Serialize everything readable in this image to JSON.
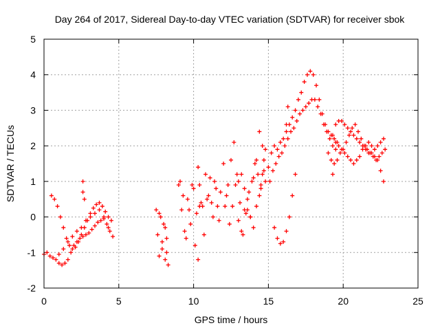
{
  "chart_data": {
    "type": "scatter",
    "title": "Day 264 of 2017, Sidereal Day-to-day VTEC variation (SDTVAR) for receiver sbok",
    "xlabel": "GPS time / hours",
    "ylabel": "SDTVAR / TECUs",
    "xlim": [
      0,
      25
    ],
    "ylim": [
      -2,
      5
    ],
    "x_ticks": [
      "0",
      "5",
      "10",
      "15",
      "20",
      "25"
    ],
    "y_ticks": [
      "-2",
      "-1",
      "0",
      "1",
      "2",
      "3",
      "4",
      "5"
    ],
    "grid": true,
    "marker": "+",
    "color": "#ff0000",
    "series": [
      {
        "name": "sbok",
        "x": [
          0.0,
          0.2,
          0.4,
          0.6,
          0.8,
          1.0,
          1.2,
          1.4,
          1.6,
          1.8,
          2.0,
          2.2,
          2.4,
          2.6,
          2.8,
          3.0,
          3.2,
          3.4,
          3.6,
          3.8,
          4.0,
          4.2,
          4.4,
          4.6,
          0.5,
          0.7,
          0.9,
          1.1,
          1.3,
          1.5,
          1.7,
          1.9,
          2.1,
          2.3,
          2.5,
          2.7,
          2.9,
          3.1,
          3.3,
          3.5,
          3.7,
          3.9,
          4.1,
          4.3,
          4.5,
          1.0,
          1.3,
          1.6,
          1.9,
          2.2,
          2.5,
          2.8,
          3.1,
          3.4,
          3.7,
          4.0,
          4.3,
          2.6,
          2.6,
          2.7,
          7.5,
          7.6,
          7.7,
          7.8,
          7.9,
          8.0,
          8.1,
          8.2,
          8.3,
          7.7,
          7.9,
          8.1,
          8.2,
          9.0,
          9.2,
          9.4,
          9.6,
          9.8,
          10.0,
          10.2,
          10.4,
          10.6,
          10.8,
          11.0,
          11.2,
          11.4,
          11.6,
          11.8,
          9.1,
          9.3,
          9.5,
          9.7,
          9.9,
          10.1,
          10.3,
          10.5,
          10.7,
          10.9,
          11.1,
          11.3,
          11.5,
          11.7,
          10.3,
          10.4,
          12.0,
          12.2,
          12.4,
          12.6,
          12.8,
          13.0,
          13.2,
          13.4,
          13.6,
          13.8,
          14.0,
          14.2,
          14.4,
          14.6,
          14.8,
          12.1,
          12.3,
          12.5,
          12.7,
          12.9,
          13.1,
          13.3,
          13.5,
          13.7,
          13.9,
          14.1,
          14.3,
          14.5,
          14.7,
          13.0,
          13.2,
          13.4,
          13.6,
          13.8,
          14.0,
          14.2,
          14.4,
          14.5,
          14.6,
          14.7,
          14.8,
          15.0,
          15.2,
          15.4,
          15.6,
          15.8,
          16.0,
          16.2,
          16.4,
          16.6,
          16.8,
          17.0,
          17.2,
          17.4,
          17.6,
          17.8,
          18.0,
          18.2,
          18.4,
          18.6,
          18.8,
          19.0,
          19.2,
          19.4,
          19.6,
          15.1,
          15.3,
          15.5,
          15.7,
          15.9,
          16.1,
          16.3,
          16.5,
          16.7,
          16.9,
          17.1,
          17.3,
          17.5,
          17.7,
          17.9,
          18.1,
          18.3,
          18.5,
          18.7,
          18.9,
          19.1,
          19.3,
          19.5,
          15.4,
          15.6,
          15.8,
          16.0,
          16.2,
          16.4,
          16.6,
          16.8,
          16.2,
          16.3,
          19.0,
          19.2,
          19.4,
          19.6,
          19.8,
          20.0,
          20.2,
          20.4,
          20.6,
          20.8,
          21.0,
          21.2,
          21.4,
          21.6,
          21.8,
          22.0,
          22.2,
          22.4,
          22.6,
          22.8,
          19.5,
          19.7,
          19.9,
          20.1,
          20.3,
          20.5,
          20.7,
          20.9,
          21.1,
          21.3,
          21.5,
          21.7,
          21.9,
          22.1,
          22.3,
          22.5,
          22.7,
          19.3,
          19.5,
          19.7,
          19.9,
          20.1,
          20.3,
          20.5,
          20.7,
          20.9,
          21.1,
          21.3,
          21.5,
          21.7,
          21.9,
          22.1,
          22.3,
          22.5,
          22.7,
          19.3
        ],
        "y": [
          -1.05,
          -1.0,
          -1.1,
          -1.15,
          -1.2,
          -1.3,
          -1.35,
          -1.3,
          -1.2,
          -1.0,
          -0.8,
          -0.7,
          -0.6,
          -0.55,
          -0.5,
          -0.45,
          -0.35,
          -0.25,
          -0.15,
          -0.1,
          -0.05,
          -0.2,
          -0.4,
          -0.55,
          0.6,
          0.5,
          0.3,
          0.0,
          -0.3,
          -0.6,
          -0.8,
          -0.9,
          -0.85,
          -0.7,
          -0.5,
          -0.3,
          -0.1,
          0.1,
          0.25,
          0.35,
          0.4,
          0.3,
          0.15,
          0.0,
          -0.1,
          -1.05,
          -0.9,
          -0.7,
          -0.55,
          -0.4,
          -0.3,
          -0.1,
          0.0,
          0.1,
          0.2,
          0.0,
          -0.3,
          1.0,
          0.7,
          0.5,
          0.2,
          -0.5,
          -1.1,
          0.0,
          -0.9,
          -0.2,
          -1.2,
          -0.6,
          -1.35,
          0.1,
          -0.7,
          -0.3,
          -1.0,
          0.9,
          0.2,
          -0.4,
          0.5,
          -0.2,
          0.8,
          0.1,
          0.9,
          0.3,
          1.2,
          0.6,
          0.4,
          1.0,
          0.3,
          0.7,
          1.0,
          0.6,
          -0.6,
          0.2,
          0.9,
          -0.8,
          -1.2,
          0.4,
          -0.5,
          0.5,
          1.1,
          0.0,
          0.8,
          -0.1,
          1.4,
          0.3,
          1.5,
          0.6,
          -0.2,
          0.3,
          0.9,
          1.0,
          1.2,
          0.8,
          0.2,
          0.0,
          1.1,
          1.6,
          2.4,
          2.0,
          1.0,
          0.3,
          0.9,
          1.6,
          2.1,
          1.2,
          0.4,
          -0.5,
          0.1,
          0.7,
          1.0,
          1.5,
          1.2,
          0.8,
          1.3,
          -0.1,
          -0.4,
          0.2,
          0.5,
          0.0,
          -0.3,
          0.3,
          0.6,
          0.9,
          1.2,
          1.6,
          1.9,
          1.4,
          1.8,
          2.0,
          1.9,
          2.1,
          2.2,
          2.4,
          2.6,
          2.8,
          3.0,
          3.3,
          3.5,
          3.8,
          4.0,
          4.1,
          4.0,
          3.7,
          3.3,
          2.9,
          2.6,
          2.4,
          2.3,
          2.2,
          2.1,
          1.0,
          1.3,
          1.5,
          1.7,
          1.8,
          2.0,
          2.2,
          2.4,
          2.5,
          2.7,
          2.9,
          3.0,
          3.1,
          3.2,
          3.3,
          3.3,
          3.1,
          2.9,
          2.6,
          2.4,
          2.2,
          2.0,
          1.9,
          -0.3,
          -0.6,
          -0.75,
          -0.7,
          -0.4,
          0.0,
          0.6,
          1.2,
          2.6,
          3.1,
          1.8,
          1.6,
          1.5,
          1.6,
          1.8,
          1.9,
          2.1,
          2.3,
          2.5,
          2.6,
          2.4,
          2.2,
          2.0,
          1.9,
          1.8,
          1.7,
          1.6,
          1.7,
          1.8,
          1.9,
          2.6,
          2.7,
          2.7,
          2.6,
          2.5,
          2.4,
          2.3,
          2.2,
          2.1,
          2.0,
          1.9,
          1.8,
          1.8,
          1.7,
          1.6,
          1.3,
          1.0,
          2.3,
          2.1,
          2.0,
          1.9,
          1.8,
          1.7,
          1.6,
          1.5,
          1.6,
          1.7,
          1.9,
          2.0,
          2.1,
          2.0,
          1.9,
          2.0,
          2.1,
          2.2,
          1.2
        ]
      }
    ]
  }
}
